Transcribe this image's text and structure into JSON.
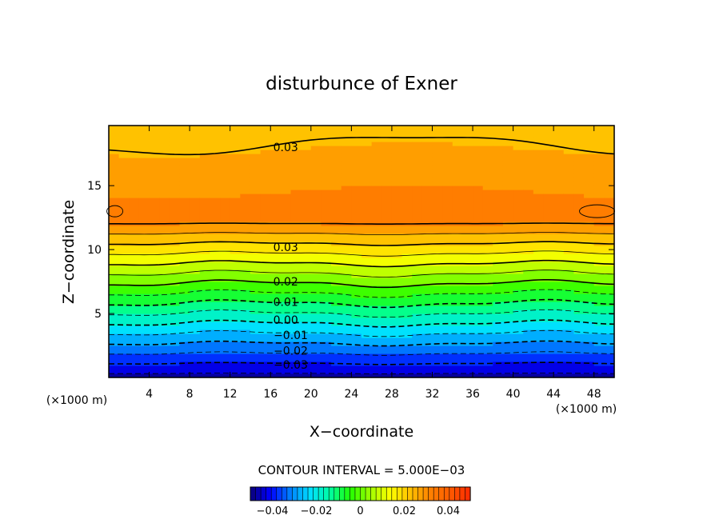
{
  "chart_data": {
    "type": "heatmap",
    "title": "disturbunce of Exner",
    "xlabel": "X−coordinate",
    "ylabel": "Z−coordinate",
    "x_unit_left": "(×1000 m)",
    "x_unit_right": "(×1000 m)",
    "xlim": [
      0,
      50
    ],
    "ylim": [
      0,
      19.7
    ],
    "x_ticks": [
      4,
      8,
      12,
      16,
      20,
      24,
      28,
      32,
      36,
      40,
      44,
      48
    ],
    "y_ticks": [
      5,
      10,
      15
    ],
    "contour_labels": [
      {
        "text": "0.03",
        "x": 17.5,
        "y": 18.0
      },
      {
        "text": "0.03",
        "x": 17.5,
        "y": 10.2
      },
      {
        "text": "0.02",
        "x": 17.5,
        "y": 7.5
      },
      {
        "text": "0.01",
        "x": 17.5,
        "y": 5.9
      },
      {
        "text": "0.00",
        "x": 17.5,
        "y": 4.5
      },
      {
        "text": "−0.01",
        "x": 18.0,
        "y": 3.3
      },
      {
        "text": "−0.02",
        "x": 18.0,
        "y": 2.1
      },
      {
        "text": "−0.03",
        "x": 18.0,
        "y": 1.0
      }
    ],
    "contour_interval_text": "CONTOUR INTERVAL = 5.000E−03",
    "colorbar": {
      "range": [
        -0.05,
        0.05
      ],
      "tick_values": [
        -0.04,
        -0.02,
        0,
        0.02,
        0.04
      ],
      "tick_labels": [
        "−0.04",
        "−0.02",
        "0",
        "0.02",
        "0.04"
      ]
    },
    "colors": [
      "#0a0078",
      "#0000ff",
      "#0080ff",
      "#00e0ff",
      "#00ffa0",
      "#20ff00",
      "#a0ff00",
      "#ffff00",
      "#ffc000",
      "#ff8000",
      "#ff5a00",
      "#ff2800"
    ]
  }
}
